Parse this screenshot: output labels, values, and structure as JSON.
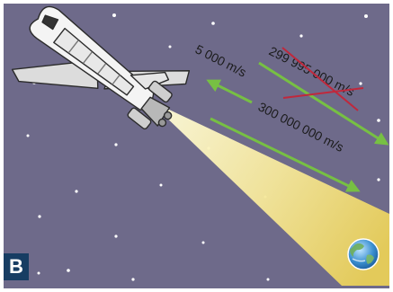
{
  "panel_letter": "B",
  "labels": {
    "shuttle_speed": "5 000 m/s",
    "wrong_speed": "299 995 000 m/s",
    "light_speed": "300 000 000 m/s"
  },
  "colors": {
    "background": "#6e6a8a",
    "frame": "#ffffff",
    "arrow": "#77c043",
    "strike": "#c0283c",
    "beam": "#f2e27a",
    "badge": "#173d63"
  },
  "icons": [
    "space-shuttle-icon",
    "earth-globe-icon",
    "star-icon"
  ]
}
